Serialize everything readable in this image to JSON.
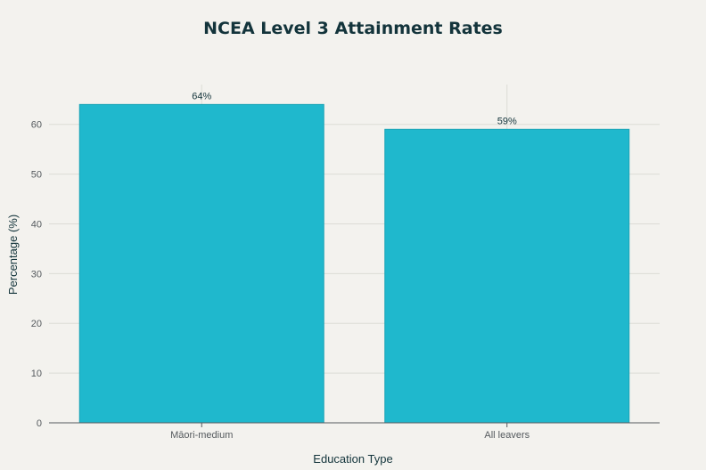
{
  "chart_data": {
    "type": "bar",
    "title": "NCEA Level 3 Attainment Rates",
    "xlabel": "Education Type",
    "ylabel": "Percentage (%)",
    "categories": [
      "Māori-medium",
      "All leavers"
    ],
    "values": [
      64,
      59
    ],
    "data_labels": [
      "64%",
      "59%"
    ],
    "ylim": [
      0,
      68
    ],
    "yticks": [
      0,
      10,
      20,
      30,
      40,
      50,
      60
    ],
    "grid": true,
    "colors": {
      "bar": "#1fb8cd",
      "bar_border": "#1aa3b5",
      "background": "#f3f2ee",
      "title": "#13343b"
    }
  }
}
